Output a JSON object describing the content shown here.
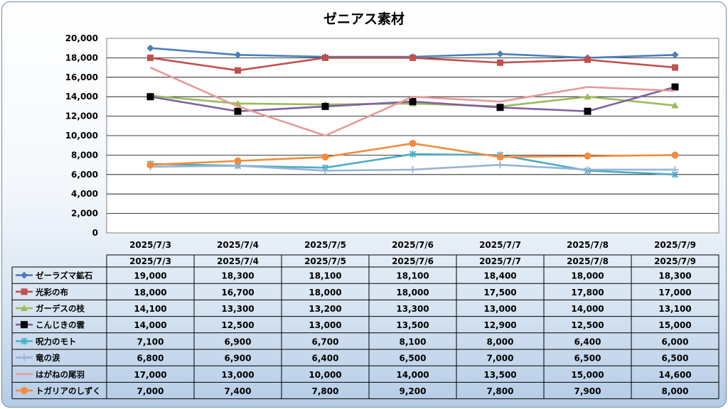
{
  "chart_data": {
    "type": "line",
    "title": "ゼニアス素材",
    "categories": [
      "2025/7/3",
      "2025/7/4",
      "2025/7/5",
      "2025/7/6",
      "2025/7/7",
      "2025/7/8",
      "2025/7/9"
    ],
    "ylim": [
      0,
      20000
    ],
    "yticks": [
      "20,000",
      "18,000",
      "16,000",
      "14,000",
      "12,000",
      "10,000",
      "8,000",
      "6,000",
      "4,000",
      "2,000",
      "0"
    ],
    "grid": true,
    "data_table": true,
    "series": [
      {
        "name": "ゼーラズマ鉱石",
        "color": "#4a7ebb",
        "marker": "diamond",
        "values": [
          19000,
          18300,
          18100,
          18100,
          18400,
          18000,
          18300
        ],
        "labels": [
          "19,000",
          "18,300",
          "18,100",
          "18,100",
          "18,400",
          "18,000",
          "18,300"
        ]
      },
      {
        "name": "光彩の布",
        "color": "#c0504d",
        "marker": "square",
        "values": [
          18000,
          16700,
          18000,
          18000,
          17500,
          17800,
          17000
        ],
        "labels": [
          "18,000",
          "16,700",
          "18,000",
          "18,000",
          "17,500",
          "17,800",
          "17,000"
        ]
      },
      {
        "name": "ガーデスの枝",
        "color": "#9bbb59",
        "marker": "triangle",
        "values": [
          14100,
          13300,
          13200,
          13300,
          13000,
          14000,
          13100
        ],
        "labels": [
          "14,100",
          "13,300",
          "13,200",
          "13,300",
          "13,000",
          "14,000",
          "13,100"
        ]
      },
      {
        "name": "こんじきの雲",
        "color": "#7f60a0",
        "marker": "blacksquare",
        "values": [
          14000,
          12500,
          13000,
          13500,
          12900,
          12500,
          15000
        ],
        "labels": [
          "14,000",
          "12,500",
          "13,000",
          "13,500",
          "12,900",
          "12,500",
          "15,000"
        ]
      },
      {
        "name": "呪力のモト",
        "color": "#4bacc6",
        "marker": "star",
        "values": [
          7100,
          6900,
          6700,
          8100,
          8000,
          6400,
          6000
        ],
        "labels": [
          "7,100",
          "6,900",
          "6,700",
          "8,100",
          "8,000",
          "6,400",
          "6,000"
        ]
      },
      {
        "name": "竜の涙",
        "color": "#95b3d7",
        "marker": "plus",
        "values": [
          6800,
          6900,
          6400,
          6500,
          7000,
          6500,
          6500
        ],
        "labels": [
          "6,800",
          "6,900",
          "6,400",
          "6,500",
          "7,000",
          "6,500",
          "6,500"
        ]
      },
      {
        "name": "はがねの尾羽",
        "color": "#e6999a",
        "marker": "none",
        "values": [
          17000,
          13000,
          10000,
          14000,
          13500,
          15000,
          14600
        ],
        "labels": [
          "17,000",
          "13,000",
          "10,000",
          "14,000",
          "13,500",
          "15,000",
          "14,600"
        ]
      },
      {
        "name": "トガリアのしずく",
        "color": "#f08c3c",
        "marker": "circle",
        "values": [
          7000,
          7400,
          7800,
          9200,
          7800,
          7900,
          8000
        ],
        "labels": [
          "7,000",
          "7,400",
          "7,800",
          "9,200",
          "7,800",
          "7,900",
          "8,000"
        ]
      }
    ]
  }
}
